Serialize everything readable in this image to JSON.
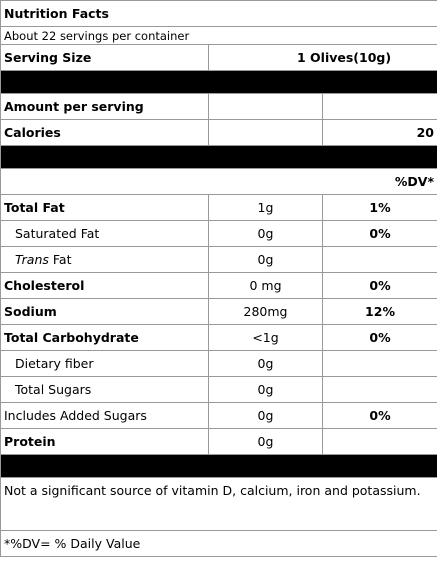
{
  "title": "Nutrition Facts",
  "servings": "About 22 servings per container",
  "serving_size": {
    "label": "Serving Size",
    "value": "1 Olives(10g)"
  },
  "amount_label": "Amount per serving",
  "calories": {
    "label": "Calories",
    "value": "20"
  },
  "dv_header": "%DV*",
  "rows": [
    {
      "label": "Total Fat",
      "amount": "1g",
      "dv": "1%"
    },
    {
      "label": "Saturated Fat",
      "amount": "0g",
      "dv": "0%"
    },
    {
      "label_italic": "Trans",
      "label": "Fat",
      "amount": "0g"
    },
    {
      "label": "Cholesterol",
      "amount": "0 mg",
      "dv": "0%"
    },
    {
      "label": "Sodium",
      "amount": "280mg",
      "dv": "12%"
    },
    {
      "label": "Total Carbohydrate",
      "amount": "<1g",
      "dv": "0%"
    },
    {
      "label": "Dietary fiber",
      "amount": "0g"
    },
    {
      "label": "Total Sugars",
      "amount": "0g"
    },
    {
      "label": "Includes Added Sugars",
      "amount": "0g",
      "dv": "0%"
    },
    {
      "label": "Protein",
      "amount": "0g"
    }
  ],
  "note": "Not a significant source of vitamin D, calcium, iron and potassium.",
  "footnote": "*%DV= % Daily Value"
}
